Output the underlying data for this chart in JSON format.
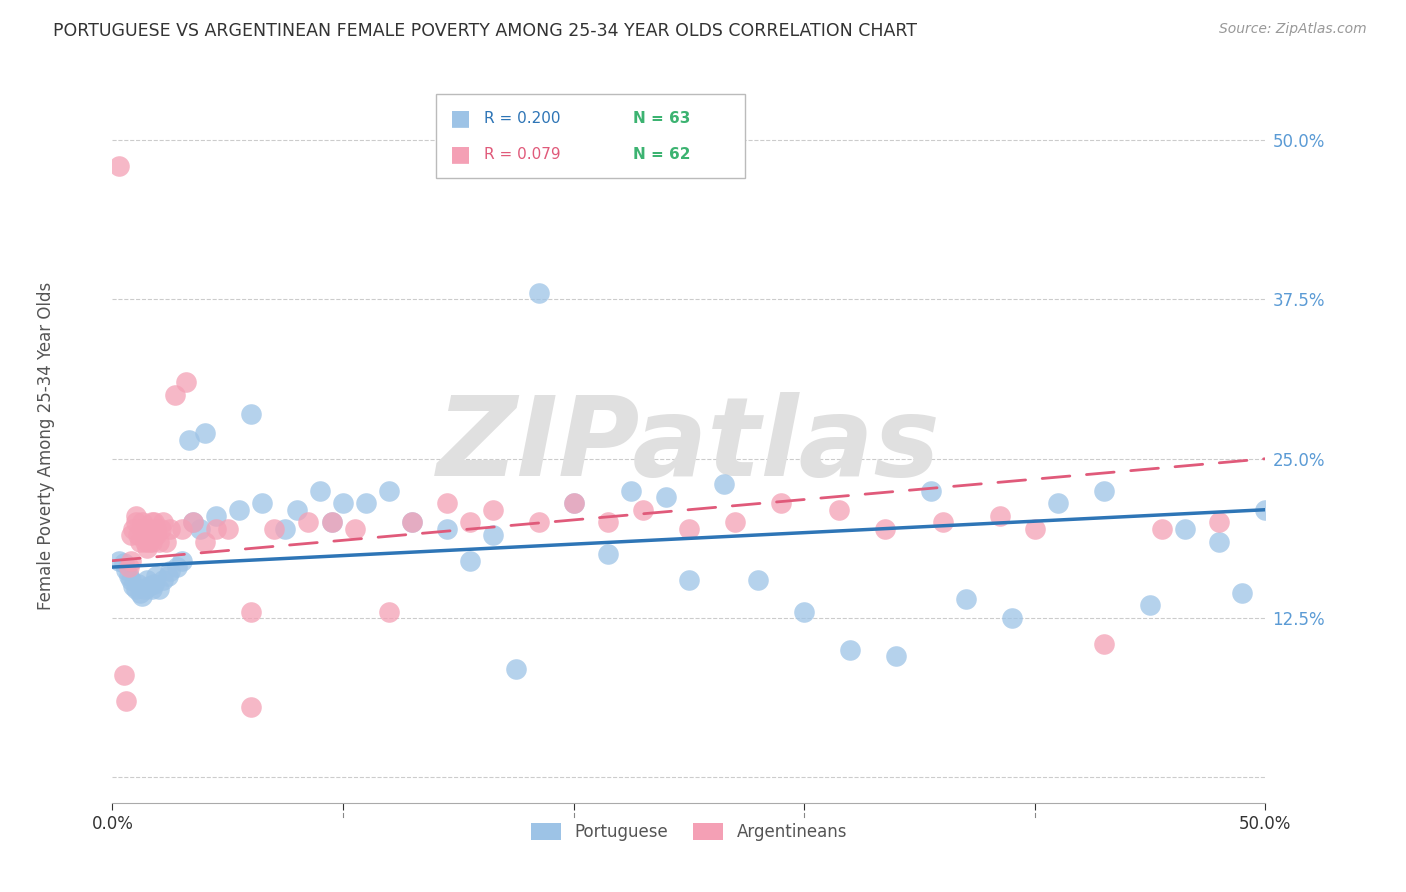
{
  "title": "PORTUGUESE VS ARGENTINEAN FEMALE POVERTY AMONG 25-34 YEAR OLDS CORRELATION CHART",
  "source": "Source: ZipAtlas.com",
  "ylabel": "Female Poverty Among 25-34 Year Olds",
  "xlim": [
    0.0,
    0.5
  ],
  "ylim": [
    -0.02,
    0.54
  ],
  "title_color": "#333333",
  "source_color": "#999999",
  "axis_label_color": "#555555",
  "tick_color_right": "#5b9bd5",
  "tick_color_bottom": "#333333",
  "background_color": "#ffffff",
  "watermark_text": "ZIPatlas",
  "watermark_color": "#e0e0e0",
  "portuguese_color": "#9dc3e6",
  "argentinean_color": "#f4a0b5",
  "portuguese_line_color": "#2e75b6",
  "argentinean_line_color": "#e05a7a",
  "legend_R1": "R = 0.200",
  "legend_N1": "N = 63",
  "legend_R2": "R = 0.079",
  "legend_N2": "N = 62",
  "portuguese_x": [
    0.003,
    0.005,
    0.006,
    0.007,
    0.008,
    0.009,
    0.01,
    0.011,
    0.012,
    0.013,
    0.014,
    0.015,
    0.016,
    0.017,
    0.018,
    0.019,
    0.02,
    0.022,
    0.024,
    0.025,
    0.028,
    0.03,
    0.033,
    0.035,
    0.038,
    0.04,
    0.045,
    0.055,
    0.06,
    0.065,
    0.075,
    0.08,
    0.09,
    0.095,
    0.1,
    0.11,
    0.12,
    0.13,
    0.145,
    0.155,
    0.165,
    0.175,
    0.185,
    0.2,
    0.215,
    0.225,
    0.24,
    0.25,
    0.265,
    0.28,
    0.3,
    0.32,
    0.34,
    0.355,
    0.37,
    0.39,
    0.41,
    0.43,
    0.45,
    0.465,
    0.48,
    0.49,
    0.5
  ],
  "portuguese_y": [
    0.17,
    0.168,
    0.163,
    0.158,
    0.155,
    0.15,
    0.148,
    0.152,
    0.145,
    0.142,
    0.148,
    0.155,
    0.15,
    0.148,
    0.152,
    0.158,
    0.148,
    0.155,
    0.158,
    0.162,
    0.165,
    0.17,
    0.265,
    0.2,
    0.195,
    0.27,
    0.205,
    0.21,
    0.285,
    0.215,
    0.195,
    0.21,
    0.225,
    0.2,
    0.215,
    0.215,
    0.225,
    0.2,
    0.195,
    0.17,
    0.19,
    0.085,
    0.38,
    0.215,
    0.175,
    0.225,
    0.22,
    0.155,
    0.23,
    0.155,
    0.13,
    0.1,
    0.095,
    0.225,
    0.14,
    0.125,
    0.215,
    0.225,
    0.135,
    0.195,
    0.185,
    0.145,
    0.21
  ],
  "argentinean_x": [
    0.003,
    0.005,
    0.006,
    0.007,
    0.008,
    0.008,
    0.009,
    0.01,
    0.01,
    0.011,
    0.012,
    0.013,
    0.013,
    0.014,
    0.015,
    0.015,
    0.016,
    0.016,
    0.017,
    0.017,
    0.018,
    0.018,
    0.019,
    0.019,
    0.02,
    0.021,
    0.022,
    0.023,
    0.025,
    0.027,
    0.03,
    0.032,
    0.035,
    0.04,
    0.045,
    0.05,
    0.06,
    0.07,
    0.085,
    0.095,
    0.105,
    0.12,
    0.13,
    0.145,
    0.155,
    0.165,
    0.185,
    0.2,
    0.215,
    0.23,
    0.25,
    0.27,
    0.29,
    0.315,
    0.335,
    0.36,
    0.385,
    0.4,
    0.43,
    0.455,
    0.48,
    0.06
  ],
  "argentinean_y": [
    0.48,
    0.08,
    0.06,
    0.165,
    0.17,
    0.19,
    0.195,
    0.2,
    0.205,
    0.19,
    0.185,
    0.2,
    0.195,
    0.185,
    0.18,
    0.195,
    0.185,
    0.195,
    0.2,
    0.185,
    0.19,
    0.2,
    0.19,
    0.195,
    0.185,
    0.195,
    0.2,
    0.185,
    0.195,
    0.3,
    0.195,
    0.31,
    0.2,
    0.185,
    0.195,
    0.195,
    0.13,
    0.195,
    0.2,
    0.2,
    0.195,
    0.13,
    0.2,
    0.215,
    0.2,
    0.21,
    0.2,
    0.215,
    0.2,
    0.21,
    0.195,
    0.2,
    0.215,
    0.21,
    0.195,
    0.2,
    0.205,
    0.195,
    0.105,
    0.195,
    0.2,
    0.055
  ]
}
